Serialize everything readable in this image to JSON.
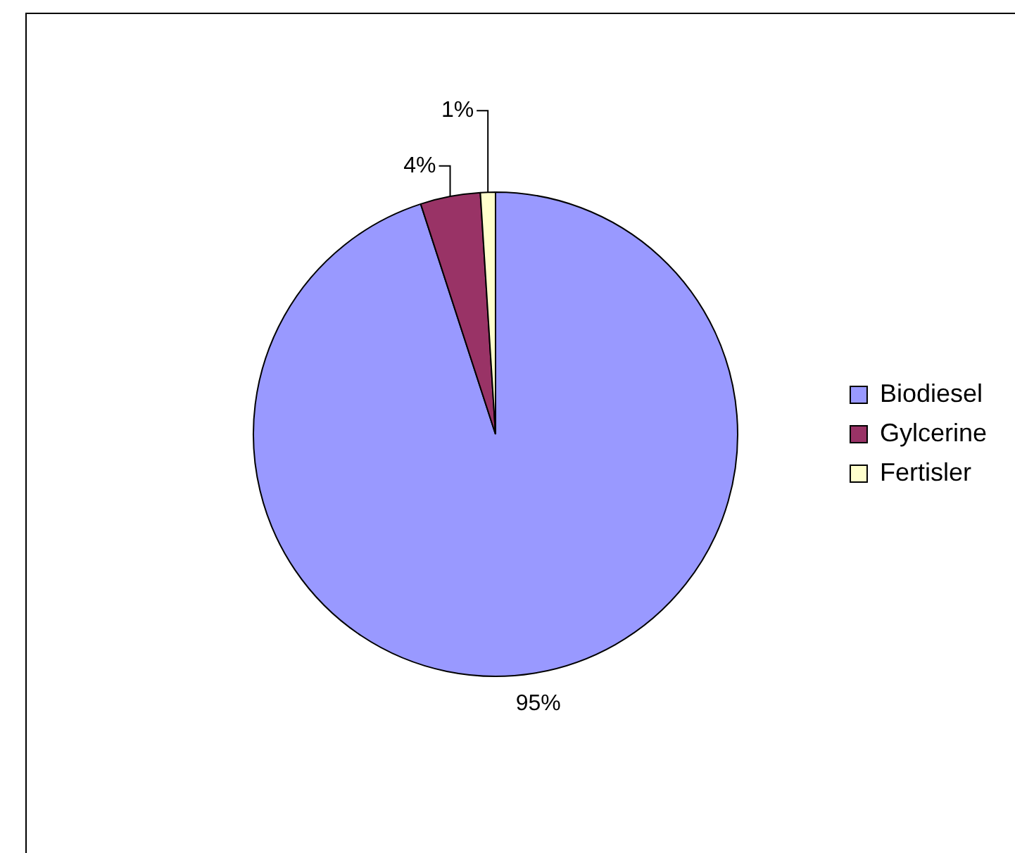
{
  "chart_data": {
    "type": "pie",
    "categories": [
      "Biodiesel",
      "Gylcerine",
      "Fertisler"
    ],
    "values": [
      95,
      4,
      1
    ],
    "colors": [
      "#9999ff",
      "#993366",
      "#ffffcc"
    ],
    "value_labels": [
      "95%",
      "4%",
      "1%"
    ],
    "legend": "right"
  }
}
